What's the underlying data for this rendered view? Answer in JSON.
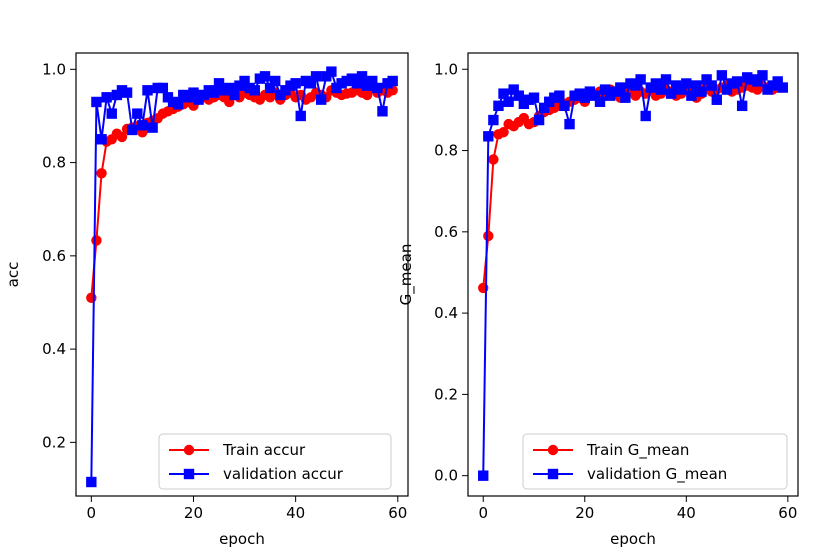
{
  "chart_data": [
    {
      "type": "line",
      "xlabel": "epoch",
      "ylabel": "acc",
      "xlim": [
        -3,
        62
      ],
      "ylim": [
        0.085,
        1.035
      ],
      "xticks": [
        0,
        20,
        40,
        60
      ],
      "yticks": [
        0.2,
        0.4,
        0.6,
        0.8,
        1.0
      ],
      "xtick_labels": [
        "0",
        "20",
        "40",
        "60"
      ],
      "ytick_labels": [
        "0.2",
        "0.4",
        "0.6",
        "0.8",
        "1.0"
      ],
      "legend_position": "lower-right",
      "series": [
        {
          "name": "Train accur",
          "color": "#ff0000",
          "marker": "circle",
          "values": [
            0.51,
            0.633,
            0.777,
            0.845,
            0.85,
            0.862,
            0.855,
            0.872,
            0.875,
            0.878,
            0.865,
            0.885,
            0.89,
            0.895,
            0.905,
            0.91,
            0.915,
            0.92,
            0.925,
            0.93,
            0.922,
            0.935,
            0.94,
            0.935,
            0.94,
            0.945,
            0.94,
            0.93,
            0.945,
            0.94,
            0.95,
            0.945,
            0.94,
            0.935,
            0.945,
            0.94,
            0.95,
            0.935,
            0.945,
            0.95,
            0.94,
            0.945,
            0.935,
            0.94,
            0.95,
            0.945,
            0.94,
            0.955,
            0.95,
            0.945,
            0.948,
            0.95,
            0.955,
            0.95,
            0.945,
            0.96,
            0.95,
            0.955,
            0.95,
            0.955
          ]
        },
        {
          "name": "validation accur",
          "color": "#0000ff",
          "marker": "square",
          "values": [
            0.115,
            0.93,
            0.85,
            0.94,
            0.905,
            0.945,
            0.955,
            0.95,
            0.87,
            0.905,
            0.88,
            0.955,
            0.875,
            0.96,
            0.96,
            0.94,
            0.93,
            0.925,
            0.945,
            0.94,
            0.95,
            0.935,
            0.945,
            0.955,
            0.95,
            0.97,
            0.955,
            0.96,
            0.945,
            0.965,
            0.975,
            0.96,
            0.955,
            0.98,
            0.985,
            0.96,
            0.975,
            0.945,
            0.955,
            0.965,
            0.97,
            0.9,
            0.975,
            0.97,
            0.985,
            0.935,
            0.985,
            0.995,
            0.96,
            0.97,
            0.975,
            0.98,
            0.97,
            0.985,
            0.965,
            0.975,
            0.96,
            0.91,
            0.97,
            0.975
          ]
        }
      ]
    },
    {
      "type": "line",
      "xlabel": "epoch",
      "ylabel": "G_mean",
      "xlim": [
        -3,
        62
      ],
      "ylim": [
        -0.05,
        1.04
      ],
      "xticks": [
        0,
        20,
        40,
        60
      ],
      "yticks": [
        0.0,
        0.2,
        0.4,
        0.6,
        0.8,
        1.0
      ],
      "xtick_labels": [
        "0",
        "20",
        "40",
        "60"
      ],
      "ytick_labels": [
        "0.0",
        "0.2",
        "0.4",
        "0.6",
        "0.8",
        "1.0"
      ],
      "legend_position": "lower-right",
      "series": [
        {
          "name": "Train G_mean",
          "color": "#ff0000",
          "marker": "circle",
          "values": [
            0.462,
            0.59,
            0.778,
            0.84,
            0.845,
            0.865,
            0.86,
            0.87,
            0.88,
            0.865,
            0.87,
            0.885,
            0.895,
            0.9,
            0.905,
            0.91,
            0.915,
            0.92,
            0.925,
            0.93,
            0.92,
            0.935,
            0.94,
            0.945,
            0.935,
            0.95,
            0.94,
            0.93,
            0.945,
            0.95,
            0.935,
            0.945,
            0.94,
            0.95,
            0.935,
            0.94,
            0.95,
            0.945,
            0.935,
            0.94,
            0.95,
            0.945,
            0.93,
            0.94,
            0.955,
            0.945,
            0.95,
            0.955,
            0.96,
            0.945,
            0.95,
            0.955,
            0.96,
            0.955,
            0.95,
            0.96,
            0.955,
            0.95,
            0.955,
            0.955
          ]
        },
        {
          "name": "validation G_mean",
          "color": "#0000ff",
          "marker": "square",
          "values": [
            0.0,
            0.835,
            0.875,
            0.91,
            0.94,
            0.92,
            0.95,
            0.935,
            0.915,
            0.925,
            0.93,
            0.875,
            0.905,
            0.92,
            0.93,
            0.935,
            0.91,
            0.865,
            0.935,
            0.94,
            0.93,
            0.945,
            0.935,
            0.92,
            0.95,
            0.935,
            0.945,
            0.955,
            0.93,
            0.965,
            0.96,
            0.975,
            0.885,
            0.955,
            0.965,
            0.95,
            0.975,
            0.94,
            0.96,
            0.95,
            0.965,
            0.935,
            0.96,
            0.945,
            0.975,
            0.96,
            0.925,
            0.985,
            0.95,
            0.965,
            0.97,
            0.91,
            0.98,
            0.975,
            0.97,
            0.985,
            0.95,
            0.96,
            0.97,
            0.955
          ]
        }
      ]
    }
  ]
}
